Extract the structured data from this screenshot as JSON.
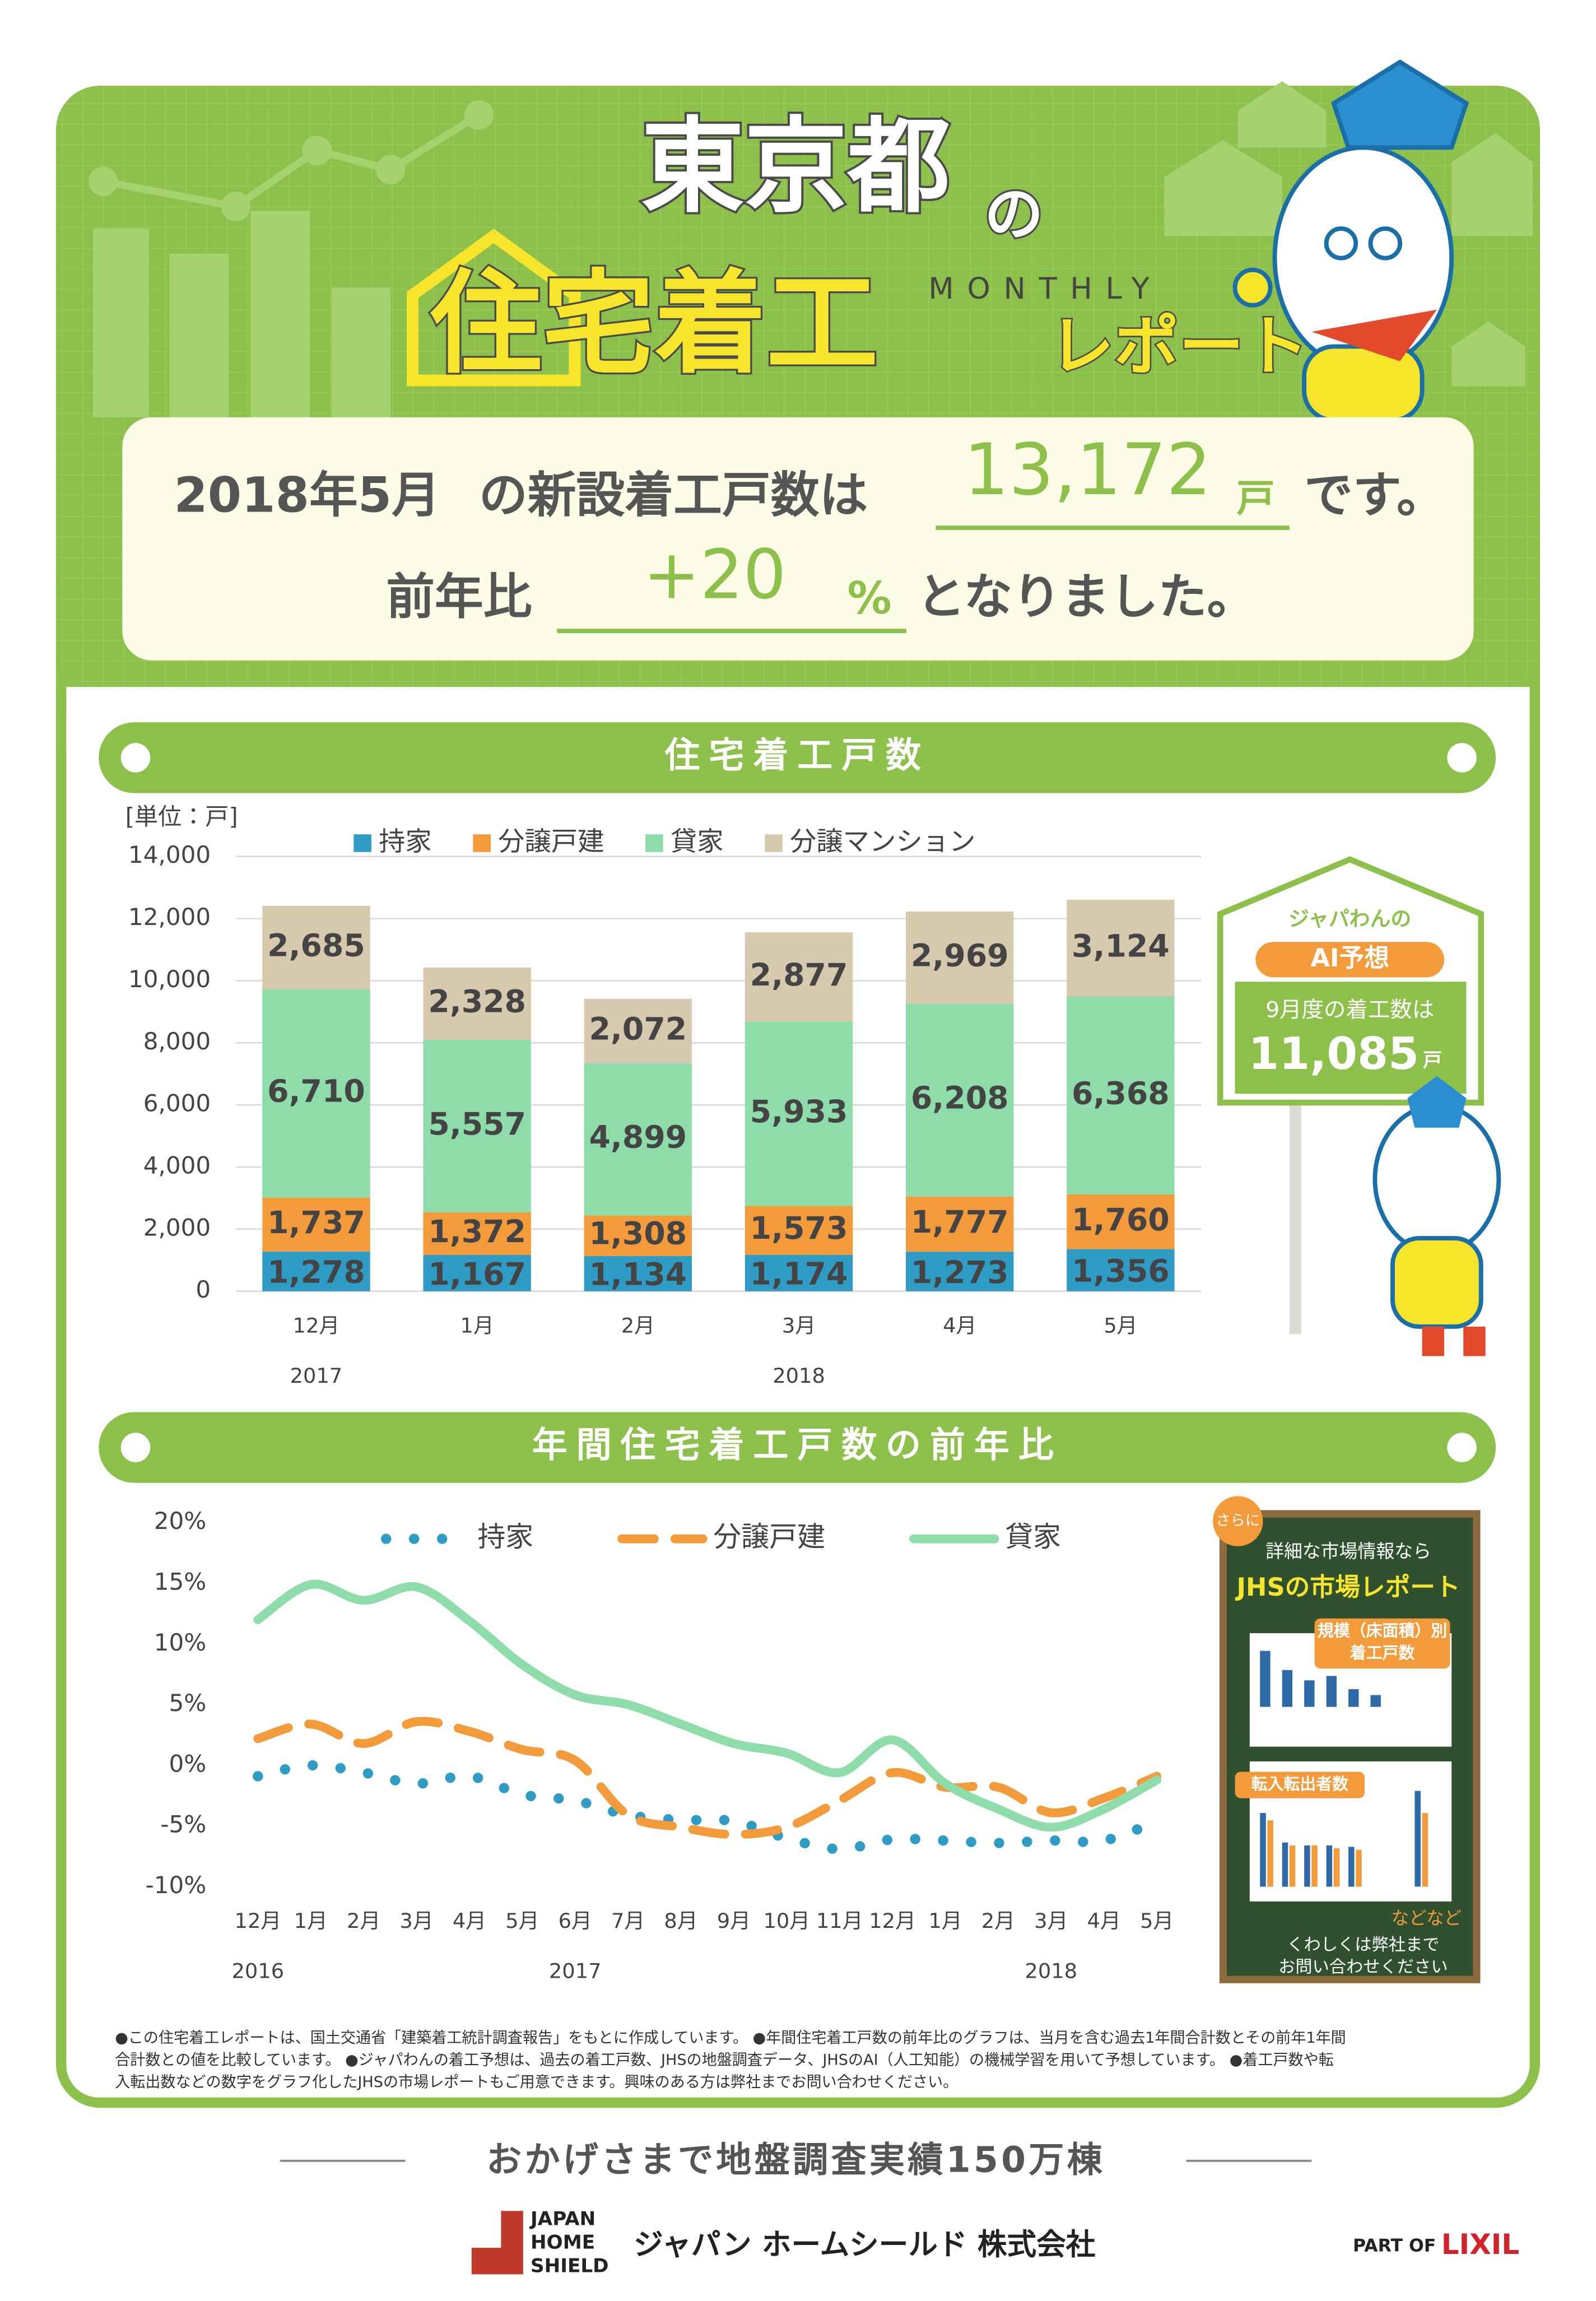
{
  "header": {
    "title": "東京都",
    "particle": "の",
    "subtitle": "住宅着工",
    "monthly": "MONTHLY",
    "report": "レポート"
  },
  "summary": {
    "period": "2018年5月",
    "text1": "の新設着工戸数は",
    "starts": "13,172",
    "unit": "戸",
    "text2": "です。",
    "yoy_text": "前年比",
    "yoy": "+20",
    "yoy_unit": "%",
    "text3": "となりました。"
  },
  "chart_data": [
    {
      "type": "bar",
      "stacked": true,
      "title": "住宅着工戸数",
      "y_label": "[単位：戸]",
      "categories": [
        "12月",
        "1月",
        "2月",
        "3月",
        "4月",
        "5月"
      ],
      "year_labels": [
        "2017",
        null,
        null,
        "2018",
        null,
        null
      ],
      "ylim": [
        0,
        14000
      ],
      "yticks": [
        0,
        {
          "value": 2000,
          "label": "2,000"
        },
        {
          "value": 4000,
          "label": "4,000"
        },
        {
          "value": 6000,
          "label": "6,000"
        },
        {
          "value": 8000,
          "label": "8,000"
        },
        {
          "value": 10000,
          "label": "10,000"
        },
        {
          "value": 12000,
          "label": "12,000"
        },
        {
          "value": 14000,
          "label": "14,000"
        }
      ],
      "grid": true,
      "series": [
        {
          "name": "持家",
          "color": "#2f9cc5",
          "values": [
            1278,
            1167,
            1134,
            1174,
            1273,
            1356
          ],
          "value_labels": [
            "1,278",
            "1,167",
            "1,134",
            "1,174",
            "1,273",
            "1,356"
          ]
        },
        {
          "name": "分譲戸建",
          "color": "#f39a3b",
          "values": [
            1737,
            1372,
            1308,
            1573,
            1777,
            1760
          ],
          "value_labels": [
            "1,737",
            "1,372",
            "1,308",
            "1,573",
            "1,777",
            "1,760"
          ]
        },
        {
          "name": "貸家",
          "color": "#8fdcab",
          "values": [
            6710,
            5557,
            4899,
            5933,
            6208,
            6368
          ],
          "value_labels": [
            "6,710",
            "5,557",
            "4,899",
            "5,933",
            "6,208",
            "6,368"
          ]
        },
        {
          "name": "分譲マンション",
          "color": "#d7c9ae",
          "values": [
            2685,
            2328,
            2072,
            2877,
            2969,
            3124
          ],
          "value_labels": [
            "2,685",
            "2,328",
            "2,072",
            "2,877",
            "2,969",
            "3,124"
          ]
        }
      ]
    },
    {
      "type": "line",
      "title": "年間住宅着工戸数の前年比",
      "categories": [
        "12月",
        "1月",
        "2月",
        "3月",
        "4月",
        "5月",
        "6月",
        "7月",
        "8月",
        "9月",
        "10月",
        "11月",
        "12月",
        "1月",
        "2月",
        "3月",
        "4月",
        "5月"
      ],
      "year_labels": [
        "2016",
        null,
        null,
        null,
        null,
        null,
        "2017",
        null,
        null,
        null,
        null,
        null,
        null,
        null,
        null,
        "2018",
        null,
        null
      ],
      "ylim": [
        -10,
        20
      ],
      "yticks": [
        {
          "value": -10,
          "label": "-10%"
        },
        {
          "value": -5,
          "label": "-5%"
        },
        {
          "value": 0,
          "label": "0%"
        },
        {
          "value": 5,
          "label": "5%"
        },
        {
          "value": 10,
          "label": "10%"
        },
        {
          "value": 15,
          "label": "15%"
        },
        {
          "value": 20,
          "label": "20%"
        }
      ],
      "grid": false,
      "series": [
        {
          "name": "持家",
          "color": "#2f9cc5",
          "style": "dotted",
          "values": [
            -0.9,
            0,
            -0.6,
            -1.5,
            -0.9,
            -2.4,
            -2.9,
            -4.1,
            -4.5,
            -4.6,
            -6.0,
            -6.9,
            -6.1,
            -6.2,
            -6.4,
            -6.2,
            -6.2,
            -4.6
          ]
        },
        {
          "name": "分譲戸建",
          "color": "#f39a3b",
          "style": "dashed",
          "values": [
            2.2,
            3.4,
            1.8,
            3.6,
            2.8,
            1.3,
            0.4,
            -4.1,
            -5.1,
            -5.7,
            -5.1,
            -2.9,
            -0.6,
            -1.8,
            -1.8,
            -3.9,
            -2.7,
            -0.9
          ]
        },
        {
          "name": "貸家",
          "color": "#8fdcab",
          "style": "solid",
          "values": [
            12.0,
            14.9,
            13.6,
            14.7,
            11.9,
            8.3,
            5.8,
            5.0,
            3.4,
            1.8,
            1.0,
            -0.6,
            2.1,
            -1.5,
            -3.6,
            -5.1,
            -3.6,
            -1.2
          ]
        }
      ]
    }
  ],
  "ai_forecast": {
    "owner": "ジャパわんの",
    "title": "AI予想",
    "text": "9月度の着工数は",
    "value": "11,085",
    "unit": "戸"
  },
  "promo": {
    "badge": "さらに",
    "lead": "詳細な市場情報なら",
    "title": "JHSの市場レポート",
    "tag1": "規模（床面積）別",
    "tag1b": "着工戸数",
    "tag2": "転入転出者数",
    "etc": "などなど",
    "contact1": "くわしくは弊社まで",
    "contact2": "お問い合わせください"
  },
  "notes": [
    "●この住宅着工レポートは、国土交通省「建築着工統計調査報告」をもとに作成しています。 ●年間住宅着工戸数の前年比のグラフは、当月を含む過去1年間合計数とその前年1年間",
    "合計数との値を比較しています。 ●ジャパわんの着工予想は、過去の着工戸数、JHSの地盤調査データ、JHSのAI（人工知能）の機械学習を用いて予想しています。 ●着工戸数や転",
    "入転出数などの数字をグラフ化したJHSの市場レポートもご用意できます。興味のある方は弊社までお問い合わせください。"
  ],
  "footer": {
    "tagline": "おかげさまで地盤調査実績150万棟",
    "logo1": "JAPAN",
    "logo2": "HOME",
    "logo3": "SHIELD",
    "company": "ジャパン ホームシールド 株式会社",
    "part_of": "PART OF",
    "brand": "LIXIL"
  }
}
